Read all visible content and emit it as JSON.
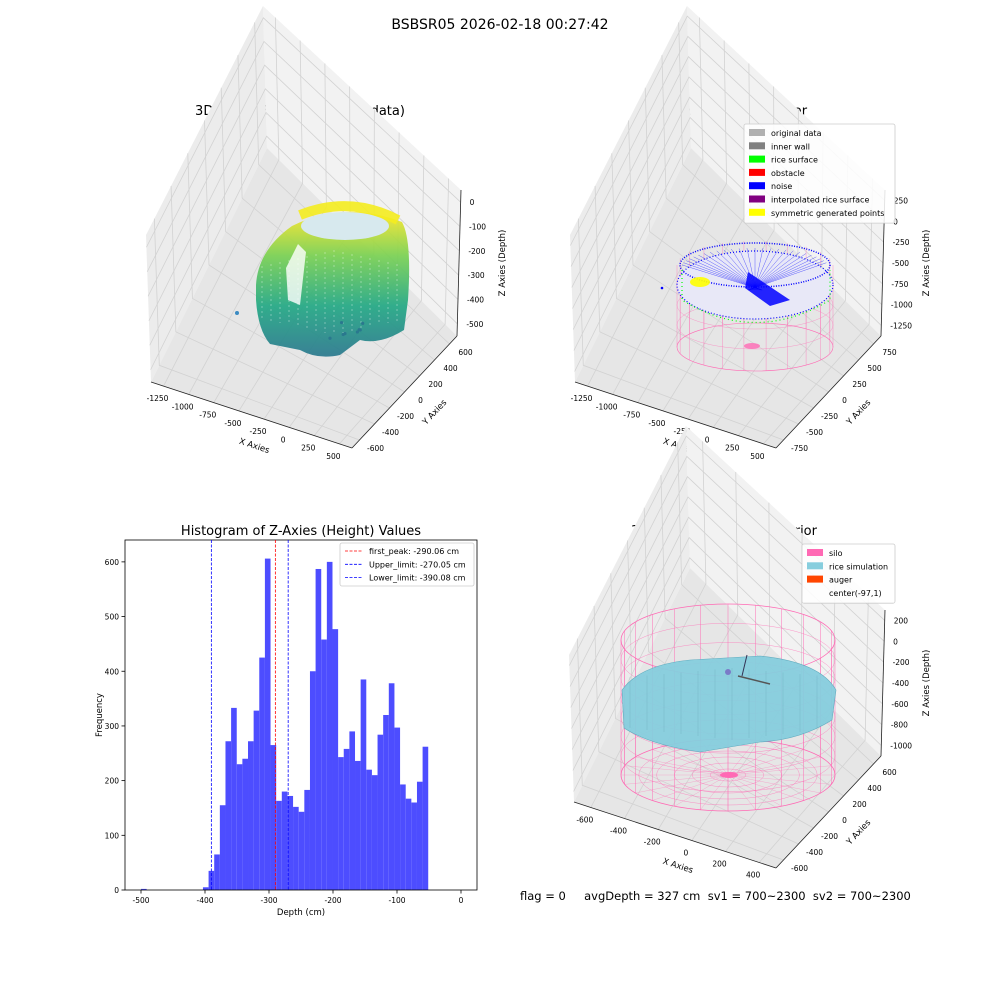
{
  "main_title": "BSBSR05 2026-02-18 00:27:42",
  "footer": "flag = 0     avgDepth = 327 cm  sv1 = 700~2300  sv2 = 700~2300",
  "colors": {
    "hist_bar": "#4d4dff",
    "first_peak": "#ff0000",
    "limits": "#0000ff",
    "silo": "#ff69b4",
    "rice": "#87cede",
    "auger": "#ff4500"
  },
  "chart_data": [
    {
      "id": "raw3d",
      "type": "scatter",
      "title": "3D Plot of Silo Interior(row data)",
      "xlabel": "X Axies",
      "ylabel": "Y Axies",
      "zlabel": "Z Axies (Depth)",
      "x_ticks": [
        "-1250",
        "-1000",
        "-750",
        "-500",
        "-250",
        "0",
        "250",
        "500"
      ],
      "y_ticks": [
        "-600",
        "-400",
        "-200",
        "0",
        "200",
        "400",
        "600"
      ],
      "z_ticks": [
        "0",
        "-100",
        "-200",
        "-300",
        "-400",
        "-500"
      ]
    },
    {
      "id": "classify3d",
      "type": "scatter",
      "title": "3D classify of Silo Interior",
      "xlabel": "X Axies",
      "ylabel": "Y Axies",
      "zlabel": "Z Axies (Depth)",
      "x_ticks": [
        "-1250",
        "-1000",
        "-750",
        "-500",
        "-250",
        "0",
        "250",
        "500"
      ],
      "y_ticks": [
        "-750",
        "-500",
        "-250",
        "0",
        "250",
        "500",
        "750"
      ],
      "z_ticks": [
        "250",
        "0",
        "-250",
        "-500",
        "-750",
        "-1000",
        "-1250"
      ],
      "legend_position": "top-right",
      "legend": [
        {
          "label": "original data",
          "color": "#b0b0b0"
        },
        {
          "label": "inner wall",
          "color": "#808080"
        },
        {
          "label": "rice surface",
          "color": "#00ff00"
        },
        {
          "label": "obstacle",
          "color": "#ff0000"
        },
        {
          "label": "noise",
          "color": "#0000ff"
        },
        {
          "label": "interpolated rice surface",
          "color": "#800080"
        },
        {
          "label": "symmetric generated points",
          "color": "#ffff00"
        }
      ]
    },
    {
      "id": "histogram",
      "type": "bar",
      "title": "Histogram of Z-Axies (Height) Values",
      "xlabel": "Depth (cm)",
      "ylabel": "Frequency",
      "xlim": [
        -525,
        25
      ],
      "ylim": [
        0,
        640
      ],
      "x_ticks": [
        -500,
        -400,
        -300,
        -200,
        -100,
        0
      ],
      "y_ticks": [
        0,
        100,
        200,
        300,
        400,
        500,
        600
      ],
      "bin_width": 8.8,
      "bins": [
        {
          "x": -500.0,
          "v": 2
        },
        {
          "x": -403.2,
          "v": 5
        },
        {
          "x": -394.4,
          "v": 35
        },
        {
          "x": -385.6,
          "v": 65
        },
        {
          "x": -376.8,
          "v": 155
        },
        {
          "x": -368.0,
          "v": 272
        },
        {
          "x": -359.2,
          "v": 333
        },
        {
          "x": -350.4,
          "v": 230
        },
        {
          "x": -341.6,
          "v": 240
        },
        {
          "x": -332.8,
          "v": 272
        },
        {
          "x": -324.0,
          "v": 328
        },
        {
          "x": -315.2,
          "v": 425
        },
        {
          "x": -306.4,
          "v": 606
        },
        {
          "x": -297.6,
          "v": 265
        },
        {
          "x": -288.8,
          "v": 163
        },
        {
          "x": -280.0,
          "v": 180
        },
        {
          "x": -271.2,
          "v": 172
        },
        {
          "x": -262.4,
          "v": 152
        },
        {
          "x": -253.6,
          "v": 143
        },
        {
          "x": -244.8,
          "v": 183
        },
        {
          "x": -236.0,
          "v": 400
        },
        {
          "x": -227.2,
          "v": 587
        },
        {
          "x": -218.4,
          "v": 458
        },
        {
          "x": -209.6,
          "v": 600
        },
        {
          "x": -200.8,
          "v": 477
        },
        {
          "x": -192.0,
          "v": 243
        },
        {
          "x": -183.2,
          "v": 258
        },
        {
          "x": -174.4,
          "v": 290
        },
        {
          "x": -165.6,
          "v": 236
        },
        {
          "x": -156.8,
          "v": 385
        },
        {
          "x": -148.0,
          "v": 220
        },
        {
          "x": -139.2,
          "v": 210
        },
        {
          "x": -130.4,
          "v": 284
        },
        {
          "x": -121.6,
          "v": 320
        },
        {
          "x": -112.8,
          "v": 378
        },
        {
          "x": -104.0,
          "v": 297
        },
        {
          "x": -95.2,
          "v": 193
        },
        {
          "x": -86.4,
          "v": 167
        },
        {
          "x": -77.6,
          "v": 160
        },
        {
          "x": -68.8,
          "v": 198
        },
        {
          "x": -60.0,
          "v": 262
        }
      ],
      "lines": [
        {
          "label": "first_peak: -290.06 cm",
          "x": -290.06,
          "style": "first_peak"
        },
        {
          "label": "Upper_limit: -270.05 cm",
          "x": -270.05,
          "style": "limits"
        },
        {
          "label": "Lower_limit: -390.08 cm",
          "x": -390.08,
          "style": "limits"
        }
      ],
      "legend_position": "top-right"
    },
    {
      "id": "simulation3d",
      "type": "scatter",
      "title": "3D simulation of Silo Interior",
      "xlabel": "X Axies",
      "ylabel": "Y Axies",
      "zlabel": "Z Axies (Depth)",
      "x_ticks": [
        "-600",
        "-400",
        "-200",
        "0",
        "200",
        "400"
      ],
      "y_ticks": [
        "-600",
        "-400",
        "-200",
        "0",
        "200",
        "400",
        "600"
      ],
      "z_ticks": [
        "200",
        "0",
        "-200",
        "-400",
        "-600",
        "-800",
        "-1000"
      ],
      "legend_position": "top-right",
      "legend": [
        {
          "label": "silo",
          "color": "#ff69b4"
        },
        {
          "label": "rice simulation",
          "color": "#87cede"
        },
        {
          "label": "auger",
          "color": "#ff4500"
        },
        {
          "label": "center(-97,1)",
          "color": "none"
        }
      ]
    }
  ]
}
